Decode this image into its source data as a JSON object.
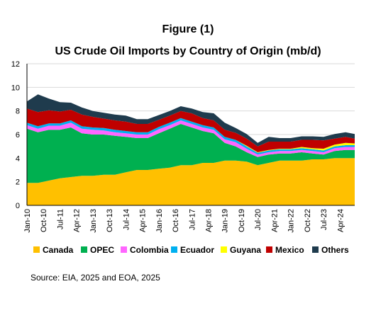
{
  "figure_label": "Figure (1)",
  "source": "Source: EIA, 2025 and EOA, 2025",
  "chart_data": {
    "type": "area",
    "stacked": true,
    "title": "US Crude Oil Imports by Country of Origin (mb/d)",
    "xlabel": "",
    "ylabel": "",
    "ylim": [
      0,
      12
    ],
    "yticks": [
      0,
      2,
      4,
      6,
      8,
      10,
      12
    ],
    "xticks": [
      "Jan-10",
      "Oct-10",
      "Jul-11",
      "Apr-12",
      "Jan-13",
      "Oct-13",
      "Jul-14",
      "Apr-15",
      "Jan-16",
      "Oct-16",
      "Jul-17",
      "Apr-18",
      "Jan-19",
      "Oct-19",
      "Jul-20",
      "Apr-21",
      "Jan-22",
      "Oct-22",
      "Jul-23",
      "Apr-24"
    ],
    "grid": true,
    "legend_position": "bottom",
    "x": [
      "2010-01",
      "2010-07",
      "2011-01",
      "2011-07",
      "2012-01",
      "2012-07",
      "2013-01",
      "2013-07",
      "2014-01",
      "2014-07",
      "2015-01",
      "2015-07",
      "2016-01",
      "2016-07",
      "2017-01",
      "2017-07",
      "2018-01",
      "2018-07",
      "2019-01",
      "2019-07",
      "2020-01",
      "2020-07",
      "2021-01",
      "2021-07",
      "2022-01",
      "2022-07",
      "2023-01",
      "2023-07",
      "2024-01",
      "2024-07",
      "2024-12"
    ],
    "series": [
      {
        "name": "Canada",
        "color": "#FFC000",
        "values": [
          1.9,
          1.9,
          2.1,
          2.3,
          2.4,
          2.5,
          2.5,
          2.6,
          2.6,
          2.8,
          3.0,
          3.0,
          3.1,
          3.2,
          3.4,
          3.4,
          3.6,
          3.6,
          3.8,
          3.8,
          3.7,
          3.4,
          3.6,
          3.8,
          3.8,
          3.8,
          3.9,
          3.9,
          4.0,
          4.0,
          4.0
        ]
      },
      {
        "name": "OPEC",
        "color": "#00B050",
        "values": [
          4.6,
          4.3,
          4.3,
          4.1,
          4.2,
          3.6,
          3.5,
          3.4,
          3.3,
          3.0,
          2.7,
          2.7,
          3.0,
          3.3,
          3.5,
          3.2,
          2.7,
          2.5,
          1.5,
          1.2,
          0.8,
          0.7,
          0.7,
          0.6,
          0.6,
          0.7,
          0.5,
          0.4,
          0.6,
          0.7,
          0.7
        ]
      },
      {
        "name": "Colombia",
        "color": "#FF66FF",
        "values": [
          0.3,
          0.3,
          0.35,
          0.35,
          0.4,
          0.4,
          0.4,
          0.35,
          0.3,
          0.3,
          0.3,
          0.3,
          0.35,
          0.3,
          0.3,
          0.3,
          0.3,
          0.3,
          0.3,
          0.35,
          0.3,
          0.2,
          0.2,
          0.2,
          0.2,
          0.2,
          0.2,
          0.2,
          0.25,
          0.25,
          0.25
        ]
      },
      {
        "name": "Ecuador",
        "color": "#00B0F0",
        "values": [
          0.2,
          0.2,
          0.2,
          0.2,
          0.2,
          0.2,
          0.2,
          0.2,
          0.2,
          0.2,
          0.2,
          0.2,
          0.2,
          0.2,
          0.2,
          0.2,
          0.2,
          0.2,
          0.2,
          0.2,
          0.2,
          0.15,
          0.15,
          0.15,
          0.15,
          0.15,
          0.15,
          0.15,
          0.15,
          0.15,
          0.15
        ]
      },
      {
        "name": "Guyana",
        "color": "#FFFF00",
        "values": [
          0,
          0,
          0,
          0,
          0,
          0,
          0,
          0,
          0,
          0,
          0,
          0,
          0,
          0,
          0,
          0,
          0,
          0,
          0,
          0,
          0.05,
          0.05,
          0.05,
          0.05,
          0.05,
          0.1,
          0.1,
          0.15,
          0.15,
          0.2,
          0.15
        ]
      },
      {
        "name": "Mexico",
        "color": "#C00000",
        "values": [
          1.2,
          1.2,
          1.1,
          1.0,
          0.9,
          1.0,
          0.9,
          0.8,
          0.8,
          0.8,
          0.7,
          0.7,
          0.6,
          0.6,
          0.6,
          0.7,
          0.6,
          0.6,
          0.6,
          0.6,
          0.6,
          0.5,
          0.7,
          0.6,
          0.6,
          0.6,
          0.7,
          0.7,
          0.5,
          0.5,
          0.4
        ]
      },
      {
        "name": "Others",
        "color": "#1F3B4D",
        "values": [
          0.6,
          1.5,
          1.0,
          0.8,
          0.6,
          0.6,
          0.5,
          0.5,
          0.5,
          0.5,
          0.4,
          0.4,
          0.4,
          0.4,
          0.4,
          0.4,
          0.5,
          0.6,
          0.6,
          0.4,
          0.4,
          0.3,
          0.4,
          0.3,
          0.3,
          0.3,
          0.3,
          0.3,
          0.4,
          0.4,
          0.4
        ]
      }
    ]
  }
}
